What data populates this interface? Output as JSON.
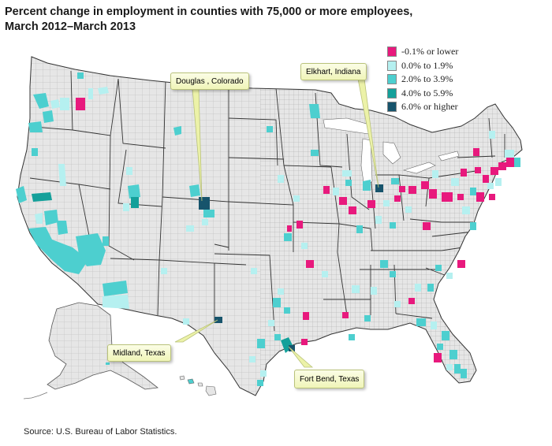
{
  "title": {
    "line1": "Percent change in employment in counties with 75,000 or more employees,",
    "line2": "March 2012–March 2013"
  },
  "legend": [
    {
      "label": "-0.1% or lower",
      "color": "#e8197d"
    },
    {
      "label": "0.0% to 1.9%",
      "color": "#b5f0f0"
    },
    {
      "label": "2.0% to 3.9%",
      "color": "#4dcfcf"
    },
    {
      "label": "4.0% to 5.9%",
      "color": "#14a09a"
    },
    {
      "label": "6.0% or higher",
      "color": "#17546c"
    }
  ],
  "callouts": {
    "douglas": "Douglas , Colorado",
    "elkhart": "Elkhart, Indiana",
    "midland": "Midland, Texas",
    "fort_bend": "Fort Bend, Texas"
  },
  "source": "Source: U.S. Bureau of Labor Statistics."
}
